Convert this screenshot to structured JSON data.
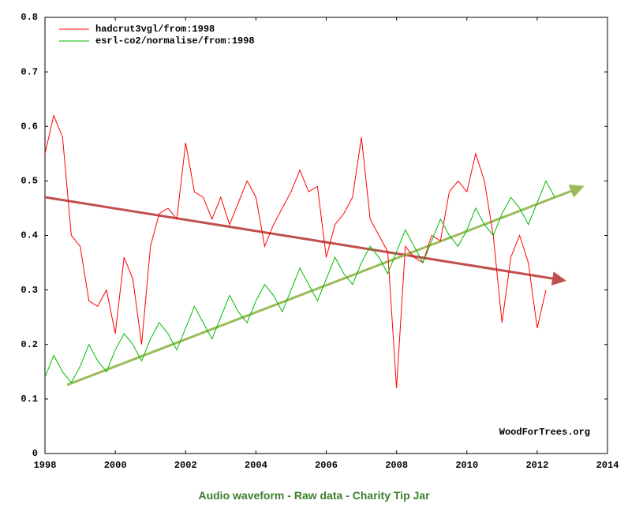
{
  "chart_data": {
    "type": "line",
    "x": [
      1998,
      1998.25,
      1998.5,
      1998.75,
      1999,
      1999.25,
      1999.5,
      1999.75,
      2000,
      2000.25,
      2000.5,
      2000.75,
      2001,
      2001.25,
      2001.5,
      2001.75,
      2002,
      2002.25,
      2002.5,
      2002.75,
      2003,
      2003.25,
      2003.5,
      2003.75,
      2004,
      2004.25,
      2004.5,
      2004.75,
      2005,
      2005.25,
      2005.5,
      2005.75,
      2006,
      2006.25,
      2006.5,
      2006.75,
      2007,
      2007.25,
      2007.5,
      2007.75,
      2008,
      2008.25,
      2008.5,
      2008.75,
      2009,
      2009.25,
      2009.5,
      2009.75,
      2010,
      2010.25,
      2010.5,
      2010.75,
      2011,
      2011.25,
      2011.5,
      2011.75,
      2012,
      2012.25,
      2012.5
    ],
    "series": [
      {
        "name": "hadcrut3vgl/from:1998",
        "color": "#ff0000",
        "values": [
          0.55,
          0.62,
          0.58,
          0.4,
          0.38,
          0.28,
          0.27,
          0.3,
          0.22,
          0.36,
          0.32,
          0.2,
          0.38,
          0.44,
          0.45,
          0.43,
          0.57,
          0.48,
          0.47,
          0.43,
          0.47,
          0.42,
          0.46,
          0.5,
          0.47,
          0.38,
          0.42,
          0.45,
          0.48,
          0.52,
          0.48,
          0.49,
          0.36,
          0.42,
          0.44,
          0.47,
          0.58,
          0.43,
          0.4,
          0.37,
          0.12,
          0.38,
          0.36,
          0.35,
          0.4,
          0.39,
          0.48,
          0.5,
          0.48,
          0.55,
          0.5,
          0.4,
          0.24,
          0.36,
          0.4,
          0.35,
          0.23,
          0.3,
          null
        ]
      },
      {
        "name": "esrl-co2/normalise/from:1998",
        "color": "#00bb00",
        "values": [
          0.14,
          0.18,
          0.15,
          0.13,
          0.16,
          0.2,
          0.17,
          0.15,
          0.19,
          0.22,
          0.2,
          0.17,
          0.21,
          0.24,
          0.22,
          0.19,
          0.23,
          0.27,
          0.24,
          0.21,
          0.25,
          0.29,
          0.26,
          0.24,
          0.28,
          0.31,
          0.29,
          0.26,
          0.3,
          0.34,
          0.31,
          0.28,
          0.32,
          0.36,
          0.33,
          0.31,
          0.35,
          0.38,
          0.36,
          0.33,
          0.37,
          0.41,
          0.38,
          0.35,
          0.39,
          0.43,
          0.4,
          0.38,
          0.41,
          0.45,
          0.42,
          0.4,
          0.44,
          0.47,
          0.45,
          0.42,
          0.46,
          0.5,
          0.47
        ]
      }
    ],
    "xlim": [
      1998,
      2014
    ],
    "xticks": [
      1998,
      2000,
      2002,
      2004,
      2006,
      2008,
      2010,
      2012,
      2014
    ],
    "ylim": [
      0,
      0.8
    ],
    "yticks": [
      0,
      0.1,
      0.2,
      0.3,
      0.4,
      0.5,
      0.6,
      0.7,
      0.8
    ],
    "grid": false,
    "legend": "top-left",
    "annotation": "WoodForTrees.org"
  },
  "footer": {
    "links": [
      "Audio waveform",
      "Raw data",
      "Charity Tip Jar"
    ],
    "separator": "-"
  }
}
